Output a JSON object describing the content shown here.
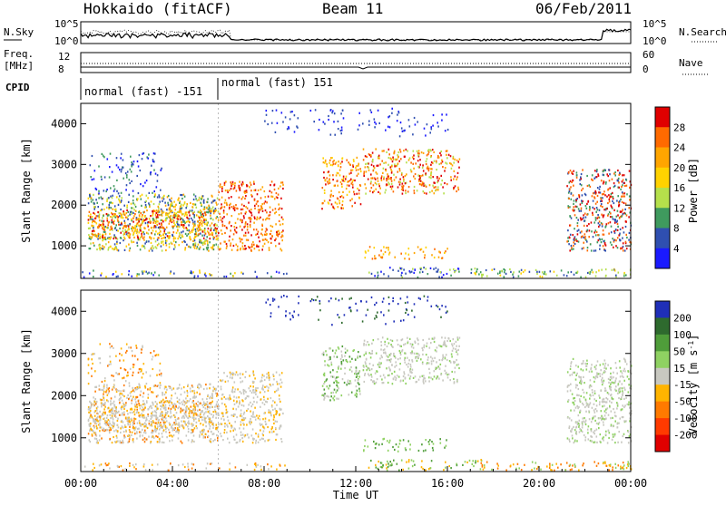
{
  "header": {
    "station": "Hokkaido (fitACF)",
    "beam": "Beam 11",
    "date": "06/Feb/2011"
  },
  "top_panels": {
    "nsky_label": "N.Sky",
    "nsearch_label": "N.Search",
    "noise_ticks": [
      "10^5",
      "10^0"
    ],
    "freq_label_1": "Freq.",
    "freq_label_2": "[MHz]",
    "freq_ticks": [
      "12",
      "8"
    ],
    "nave_label": "Nave",
    "nave_ticks": [
      "60",
      "0"
    ],
    "cpid_label": "CPID",
    "cpid_segments": [
      {
        "label": "normal (fast) -151",
        "start_hour": 0,
        "end_hour": 6
      },
      {
        "label": "normal (fast) 151",
        "start_hour": 6,
        "end_hour": 24
      }
    ]
  },
  "chart_data": [
    {
      "type": "heatmap",
      "title": "",
      "ylabel": "Slant Range [km]",
      "xlabel": "",
      "xlim": [
        0,
        24
      ],
      "ylim": [
        200,
        4500
      ],
      "yticks": [
        "1000",
        "2000",
        "3000",
        "4000"
      ],
      "colorbar": {
        "label": "Power [dB]",
        "ticks": [
          "28",
          "24",
          "20",
          "16",
          "12",
          "8",
          "4"
        ],
        "colors": [
          "#e00000",
          "#ff6a00",
          "#ffa500",
          "#ffd200",
          "#b5e04b",
          "#3f9a5e",
          "#2f4fb0",
          "#1a1aff"
        ]
      }
    },
    {
      "type": "heatmap",
      "title": "",
      "ylabel": "Slant Range [km]",
      "xlabel": "Time UT",
      "xlim": [
        0,
        24
      ],
      "ylim": [
        200,
        4500
      ],
      "yticks": [
        "1000",
        "2000",
        "3000",
        "4000"
      ],
      "xticks": [
        "00:00",
        "04:00",
        "08:00",
        "12:00",
        "16:00",
        "20:00",
        "00:00"
      ],
      "colorbar": {
        "label": "Velocity [m s^-1]",
        "ticks": [
          "200",
          "100",
          "50",
          "15",
          "-15",
          "-50",
          "-100",
          "-200"
        ],
        "colors": [
          "#1f2fb8",
          "#2e6a2e",
          "#4f9d3a",
          "#8fd162",
          "#c8c8c0",
          "#ffb400",
          "#ff7a00",
          "#ff3a00",
          "#e00000"
        ]
      }
    }
  ]
}
